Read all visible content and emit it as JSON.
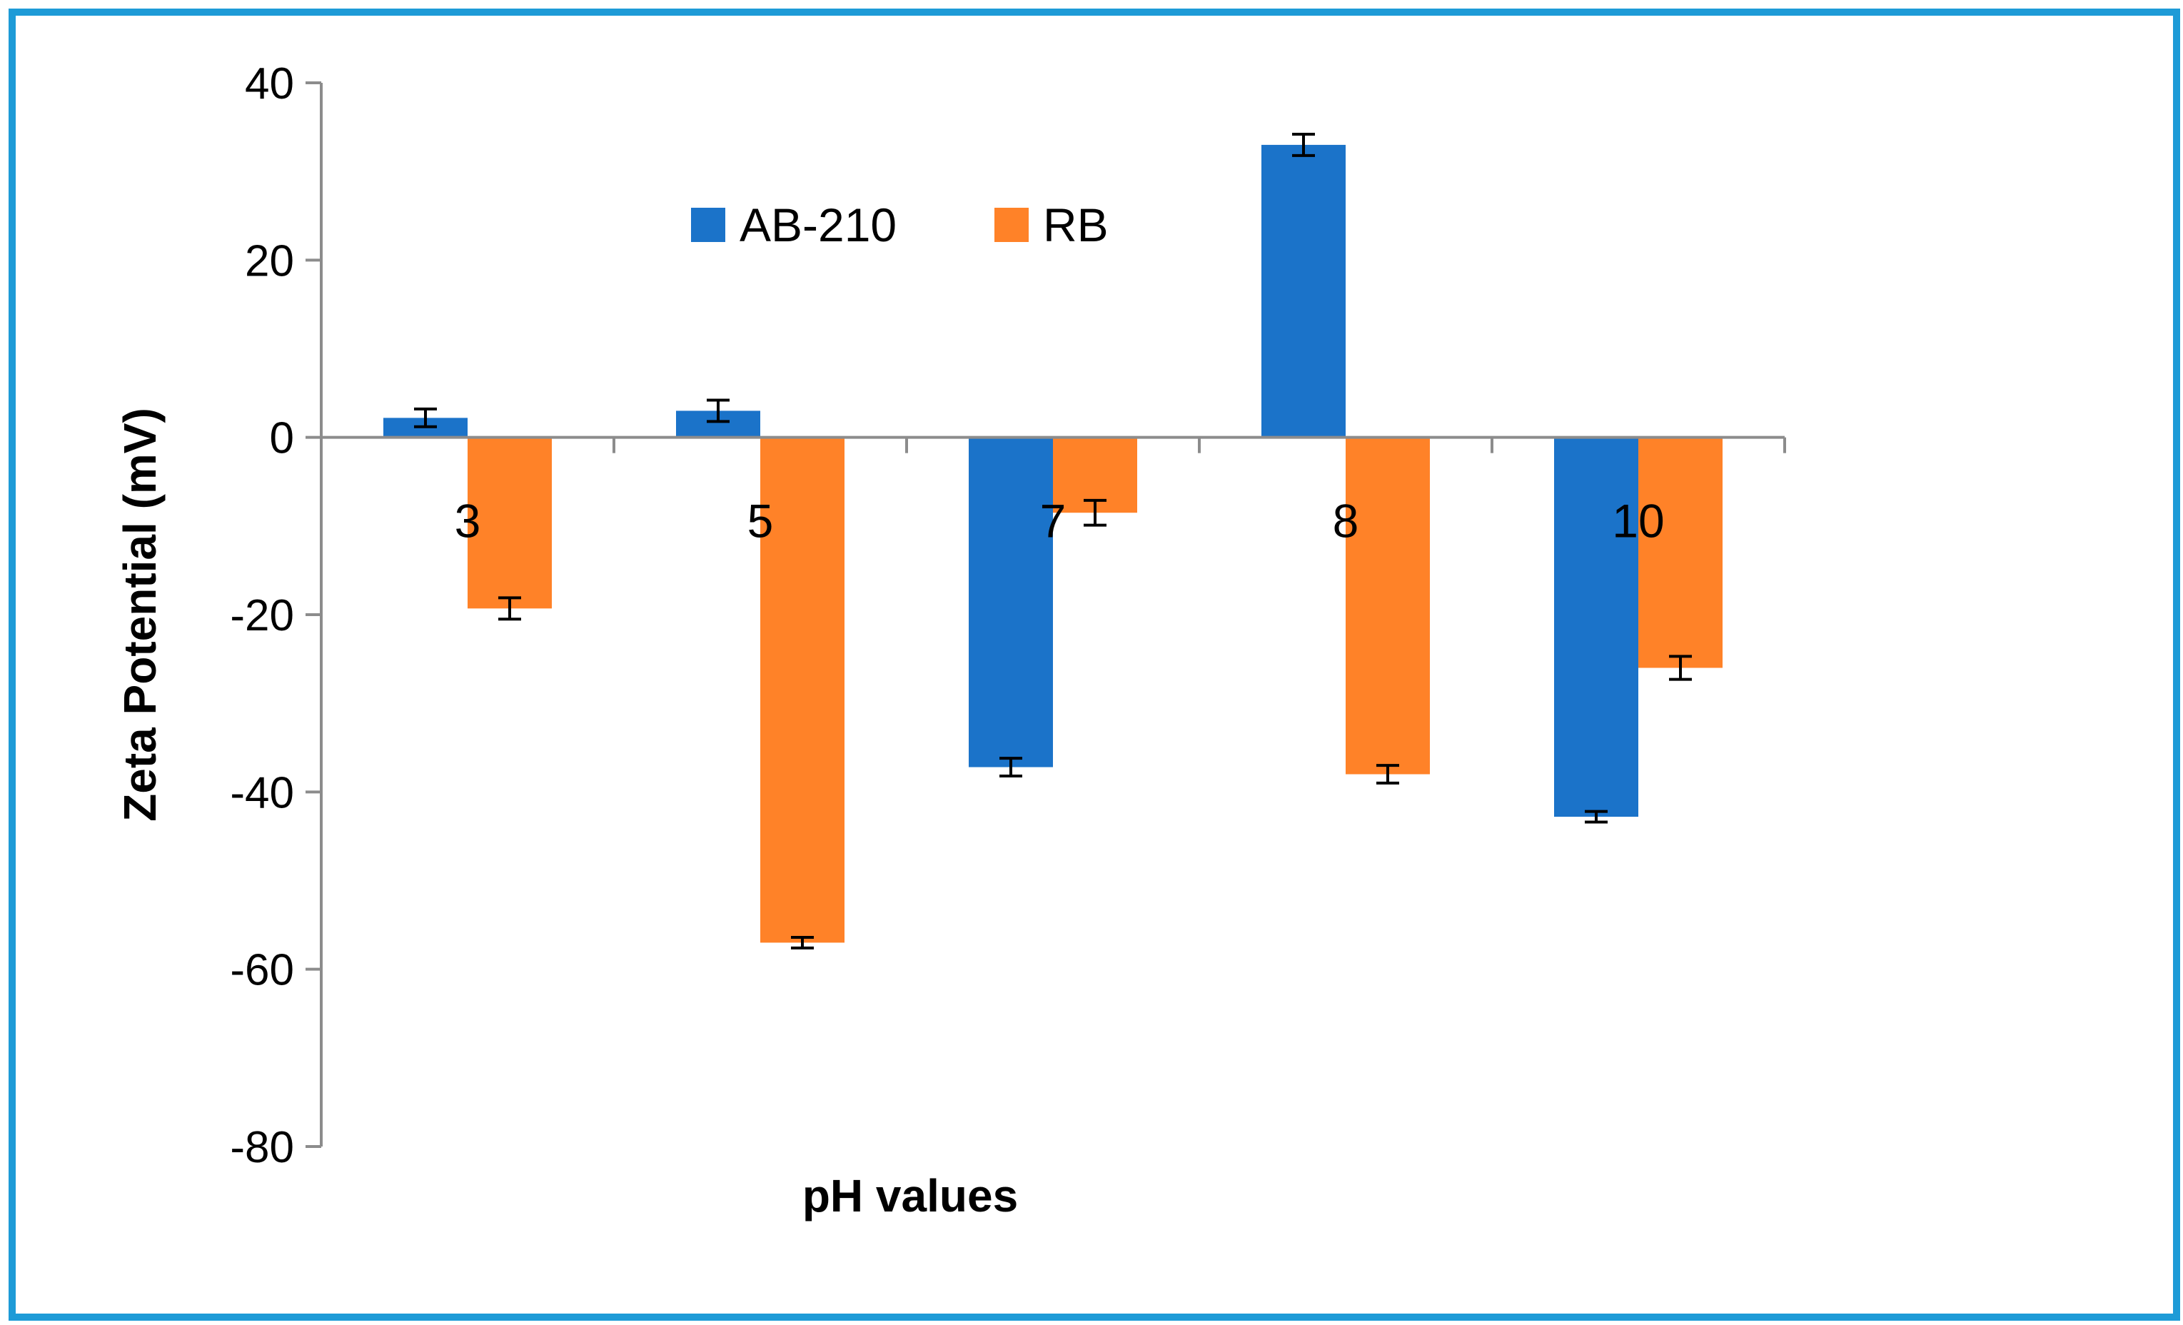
{
  "chart_data": {
    "type": "bar",
    "title": "",
    "xlabel": "pH values",
    "ylabel": "Zeta Potential (mV)",
    "categories": [
      "3",
      "5",
      "7",
      "8",
      "10"
    ],
    "ylim": [
      -80,
      40
    ],
    "yticks": [
      40,
      20,
      0,
      -20,
      -40,
      -60,
      -80
    ],
    "ytick_labels": [
      "40",
      "20",
      "0",
      "-20",
      "-40",
      "-60",
      "-80"
    ],
    "grid": false,
    "legend_position": "top-center",
    "series": [
      {
        "name": "AB-210",
        "color": "#1B73C9",
        "values": [
          2.2,
          3.0,
          -37.2,
          33.0,
          -42.8
        ],
        "errors": [
          1.0,
          1.2,
          1.0,
          1.2,
          0.6
        ]
      },
      {
        "name": "RB",
        "color": "#FF8228",
        "values": [
          -19.3,
          -57.0,
          -8.5,
          -38.0,
          -26.0
        ],
        "errors": [
          1.2,
          0.6,
          1.4,
          1.0,
          1.3
        ]
      }
    ]
  },
  "colors": {
    "frame": "#1E9BD7",
    "axis": "#8C8C8C",
    "error_bar": "#000000"
  }
}
